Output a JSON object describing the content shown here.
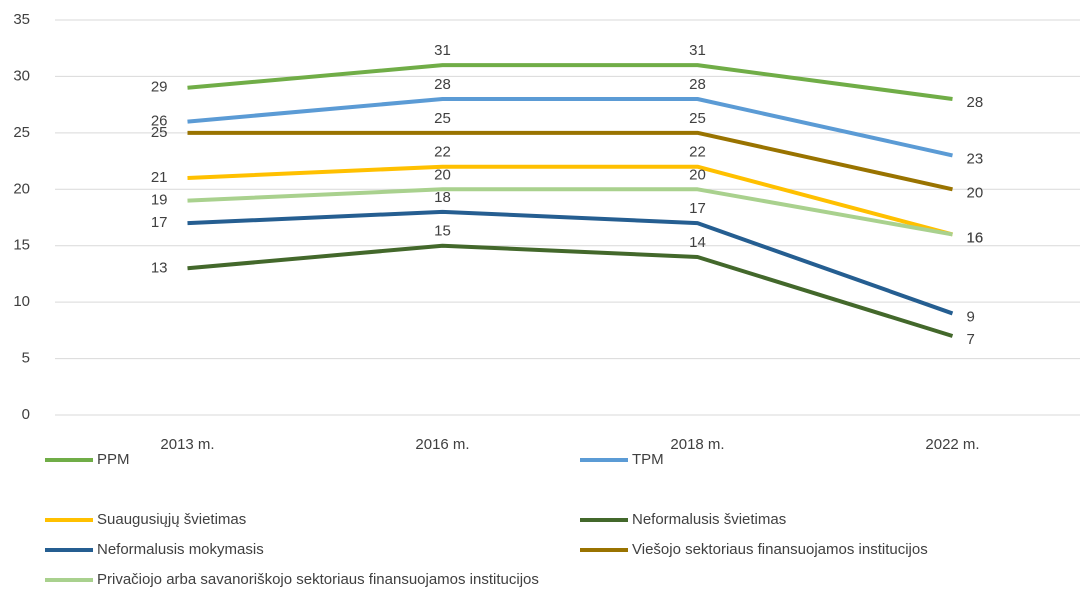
{
  "chart_data": {
    "type": "line",
    "categories": [
      "2013 m.",
      "2016 m.",
      "2018 m.",
      "2022 m."
    ],
    "ylim": [
      0,
      35
    ],
    "yticks": [
      0,
      5,
      10,
      15,
      20,
      25,
      30,
      35
    ],
    "grid": true,
    "series": [
      {
        "name": "PPM",
        "color": "#70ad47",
        "values": [
          29,
          31,
          31,
          28
        ]
      },
      {
        "name": "TPM",
        "color": "#5b9bd5",
        "values": [
          26,
          28,
          28,
          23
        ]
      },
      {
        "name": "Suaugusiųjų švietimas",
        "color": "#ffc000",
        "values": [
          21,
          22,
          22,
          16
        ]
      },
      {
        "name": "Neformalusis švietimas",
        "color": "#43682b",
        "values": [
          13,
          15,
          14,
          7
        ]
      },
      {
        "name": "Neformalusis mokymasis",
        "color": "#255e91",
        "values": [
          17,
          18,
          17,
          9
        ]
      },
      {
        "name": "Viešojo sektoriaus finansuojamos institucijos",
        "color": "#997300",
        "values": [
          25,
          25,
          25,
          20
        ]
      },
      {
        "name": "Privačiojo arba savanoriškojo sektoriaus finansuojamos institucijos",
        "color": "#a9d18e",
        "values": [
          19,
          20,
          20,
          16
        ]
      }
    ]
  }
}
